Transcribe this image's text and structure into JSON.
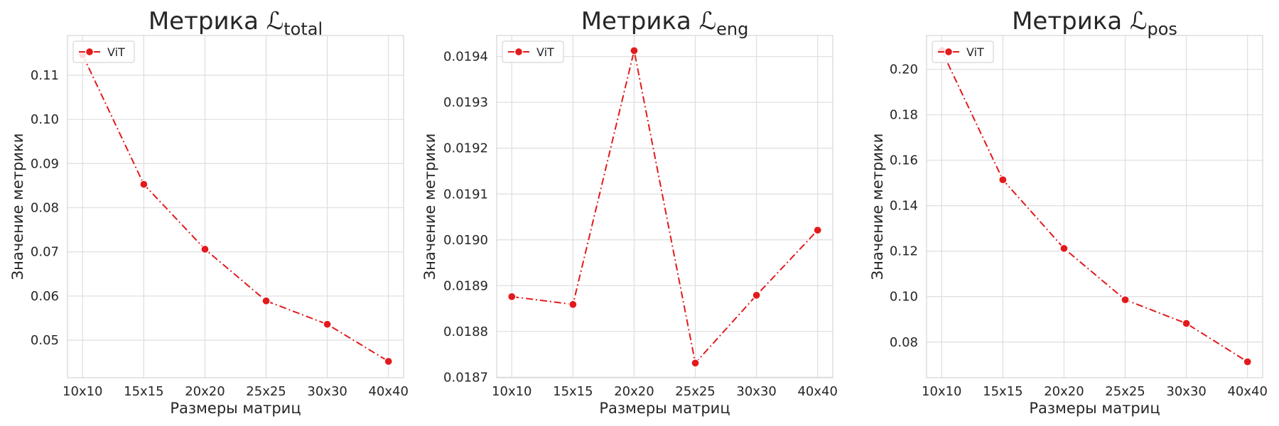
{
  "x_categories": [
    "10x10",
    "15x15",
    "20x20",
    "25x25",
    "30x30",
    "40x40"
  ],
  "xlabel": "Размеры матриц",
  "ylabel": "Значение метрики",
  "legend_label": "ViT",
  "series_color": "#e31a1c",
  "grid": true,
  "chart_data": [
    {
      "type": "line",
      "title": "Метрика ℒ",
      "title_sub": "total",
      "categories": [
        "10x10",
        "15x15",
        "20x20",
        "25x25",
        "30x30",
        "40x40"
      ],
      "series": [
        {
          "name": "ViT",
          "values": [
            0.1146,
            0.0853,
            0.0706,
            0.0589,
            0.0536,
            0.0452
          ]
        }
      ],
      "ylim": [
        0.0415,
        0.119
      ],
      "yticks": [
        0.05,
        0.06,
        0.07,
        0.08,
        0.09,
        0.1,
        0.11
      ],
      "ytick_labels": [
        "0.05",
        "0.06",
        "0.07",
        "0.08",
        "0.09",
        "0.10",
        "0.11"
      ],
      "xlabel": "Размеры матриц",
      "ylabel": "Значение метрики",
      "legend": "top-left"
    },
    {
      "type": "line",
      "title": "Метрика ℒ",
      "title_sub": "eng",
      "categories": [
        "10x10",
        "15x15",
        "20x20",
        "25x25",
        "30x30",
        "40x40"
      ],
      "series": [
        {
          "name": "ViT",
          "values": [
            0.018876,
            0.018859,
            0.019413,
            0.018731,
            0.018879,
            0.019021
          ]
        }
      ],
      "ylim": [
        0.018699,
        0.019446
      ],
      "yticks": [
        0.0187,
        0.0188,
        0.0189,
        0.019,
        0.0191,
        0.0192,
        0.0193,
        0.0194
      ],
      "ytick_labels": [
        "0.0187",
        "0.0188",
        "0.0189",
        "0.0190",
        "0.0191",
        "0.0192",
        "0.0193",
        "0.0194"
      ],
      "xlabel": "Размеры матриц",
      "ylabel": "Значение метрики",
      "legend": "top-left"
    },
    {
      "type": "line",
      "title": "Метрика ℒ",
      "title_sub": "pos",
      "categories": [
        "10x10",
        "15x15",
        "20x20",
        "25x25",
        "30x30",
        "40x40"
      ],
      "series": [
        {
          "name": "ViT",
          "values": [
            0.2083,
            0.1514,
            0.1212,
            0.0986,
            0.0882,
            0.0713
          ]
        }
      ],
      "ylim": [
        0.0643,
        0.2149
      ],
      "yticks": [
        0.08,
        0.1,
        0.12,
        0.14,
        0.16,
        0.18,
        0.2
      ],
      "ytick_labels": [
        "0.08",
        "0.10",
        "0.12",
        "0.14",
        "0.16",
        "0.18",
        "0.20"
      ],
      "xlabel": "Размеры матриц",
      "ylabel": "Значение метрики",
      "legend": "top-left"
    }
  ]
}
